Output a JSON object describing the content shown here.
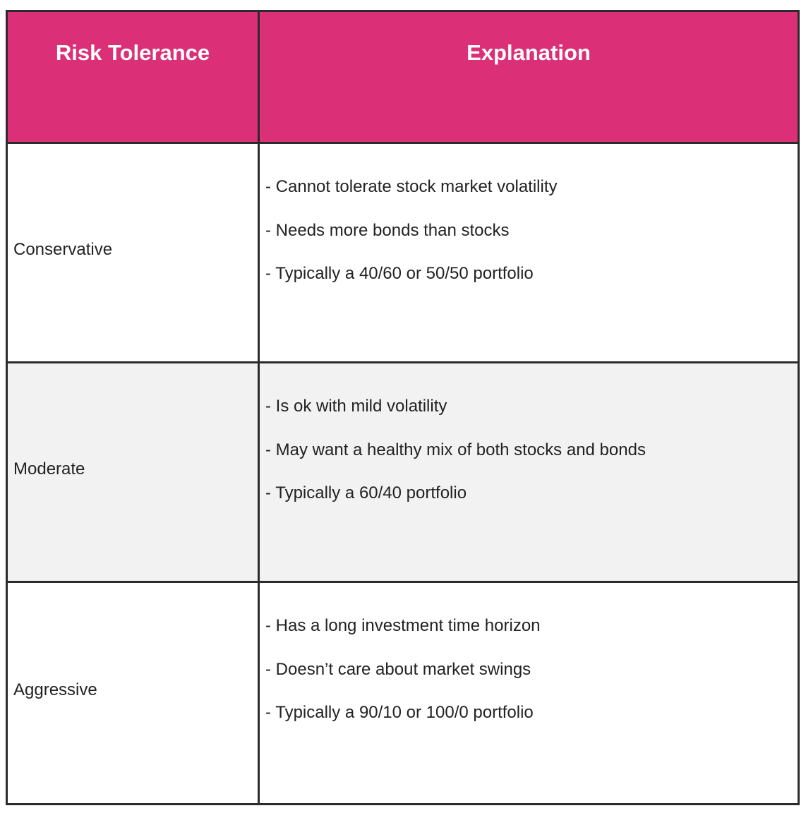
{
  "table": {
    "headers": [
      "Risk Tolerance",
      "Explanation"
    ],
    "header_color": "#db2f77",
    "rows": [
      {
        "risk": "Conservative",
        "points": [
          "- Cannot tolerate stock market volatility",
          "- Needs more bonds than stocks",
          "- Typically a 40/60 or 50/50 portfolio"
        ]
      },
      {
        "risk": "Moderate",
        "points": [
          "- Is ok with mild volatility",
          "- May want a healthy mix of both stocks and bonds",
          "- Typically a 60/40 portfolio"
        ]
      },
      {
        "risk": "Aggressive",
        "points": [
          "- Has a long investment time horizon",
          "- Doesn’t care about market swings",
          "- Typically a 90/10 or 100/0 portfolio"
        ]
      }
    ]
  }
}
